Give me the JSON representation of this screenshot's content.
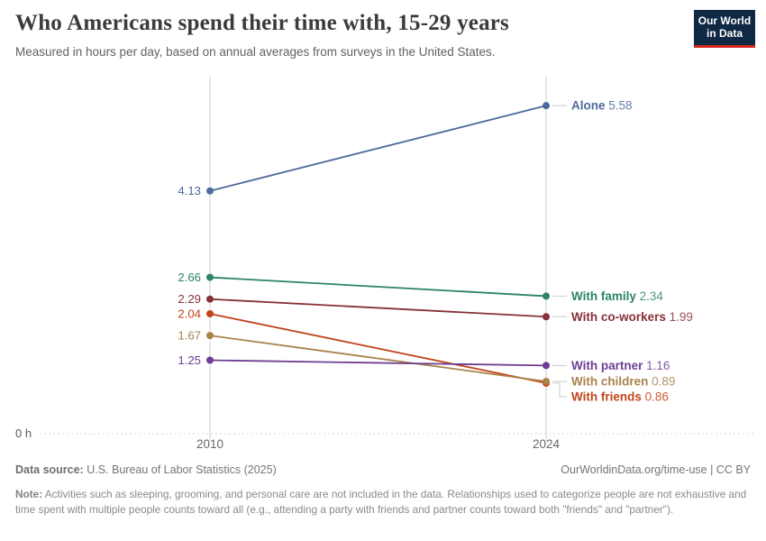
{
  "header": {
    "title": "Who Americans spend their time with, 15-29 years",
    "subtitle": "Measured in hours per day, based on annual averages from surveys in the United States.",
    "logo": {
      "line1": "Our World",
      "line2": "in Data",
      "bg_color": "#0F2843",
      "bar_color": "#D5271D"
    }
  },
  "chart_data": {
    "type": "line",
    "variant": "slope",
    "title": "Who Americans spend their time with, 15-29 years",
    "x": [
      "2010",
      "2024"
    ],
    "series": [
      {
        "name": "Alone",
        "color": "#4C6A9C",
        "values": [
          4.13,
          5.58
        ]
      },
      {
        "name": "With family",
        "color": "#2C8465",
        "values": [
          2.66,
          2.34
        ]
      },
      {
        "name": "With co-workers",
        "color": "#883039",
        "values": [
          2.29,
          1.99
        ]
      },
      {
        "name": "With friends",
        "color": "#C1441D",
        "values": [
          2.04,
          0.86
        ]
      },
      {
        "name": "With children",
        "color": "#A8834B",
        "values": [
          1.67,
          0.89
        ]
      },
      {
        "name": "With partner",
        "color": "#6D3E91",
        "values": [
          1.25,
          1.16
        ]
      }
    ],
    "ylim": [
      0,
      6
    ],
    "y_zero_label": "0 h",
    "grid": "zero-line-only",
    "legend": "right-end-labels",
    "axis_color": "#CFCFCF",
    "tick_label_color": "#666666"
  },
  "footer": {
    "datasource_label": "Data source:",
    "datasource": " U.S. Bureau of Labor Statistics (2025)",
    "rights": "OurWorldinData.org/time-use | CC BY",
    "note_label": "Note:",
    "note": " Activities such as sleeping, grooming, and personal care are not included in the data. Relationships used to categorize people are not exhaustive and time spent with multiple people counts toward all (e.g., attending a party with friends and partner counts toward both \"friends\" and \"partner\")."
  }
}
